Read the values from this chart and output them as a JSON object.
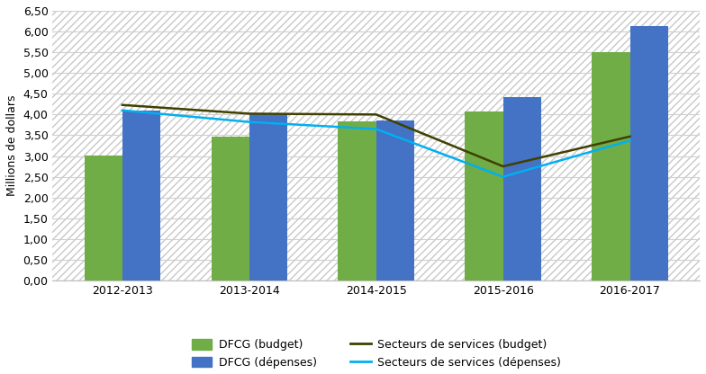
{
  "years": [
    "2012-2013",
    "2013-2014",
    "2014-2015",
    "2015-2016",
    "2016-2017"
  ],
  "dfcg_budget": [
    3.02,
    3.46,
    3.84,
    4.07,
    5.5
  ],
  "dfcg_depenses": [
    4.1,
    4.0,
    3.86,
    4.42,
    6.13
  ],
  "secteurs_budget": [
    4.23,
    4.02,
    4.0,
    2.75,
    3.47
  ],
  "secteurs_depenses": [
    4.1,
    3.82,
    3.65,
    2.5,
    3.37
  ],
  "bar_color_budget": "#70ad47",
  "bar_color_depenses": "#4472c4",
  "line_color_budget": "#404000",
  "line_color_depenses": "#00b0f0",
  "ylabel": "Millions de dollars",
  "ylim_min": 0.0,
  "ylim_max": 6.5,
  "ytick_step": 0.5,
  "legend_labels": [
    "DFCG (budget)",
    "DFCG (dépenses)",
    "Secteurs de services (budget)",
    "Secteurs de services (dépenses)"
  ],
  "background_color": "#ffffff",
  "grid_color": "#d0d0d0",
  "bar_width": 0.3
}
